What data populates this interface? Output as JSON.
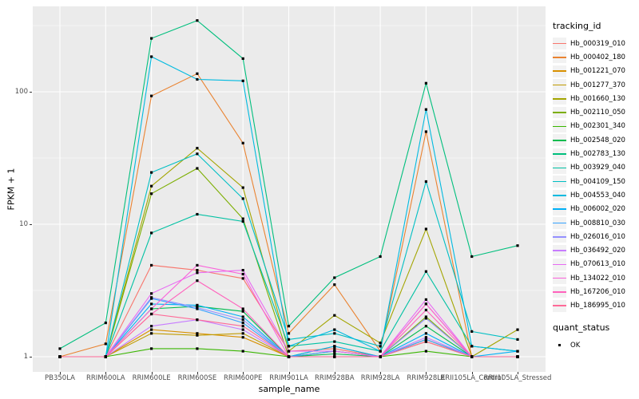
{
  "chart_data": {
    "type": "line",
    "title": "",
    "xlabel": "sample_name",
    "ylabel": "FPKM + 1",
    "y_scale": "log10",
    "ylim": [
      1,
      400
    ],
    "grid": "on",
    "legend_position": "right",
    "y_ticks": {
      "labels": [
        "1",
        "10",
        "100"
      ],
      "values": [
        1,
        10,
        100
      ]
    },
    "y_minor": [
      3.162,
      31.62,
      316.2
    ],
    "categories": [
      "PB350LA",
      "RRIM600LA",
      "RRIM600LE",
      "RRIM600SE",
      "RRIM600PE",
      "RRIM901LA",
      "RRIM928BA",
      "RRIM928LA",
      "RRIM928LE",
      "RRII105LA_Control",
      "RRII105LA_Stressed"
    ],
    "point_marker": {
      "shape": "square",
      "color": "#000000"
    },
    "series": [
      {
        "name": "Hb_000319_010",
        "color": "#F8766D",
        "values": [
          1,
          1,
          4.9,
          4.5,
          3.9,
          1.1,
          1.15,
          1,
          2.5,
          1,
          1
        ]
      },
      {
        "name": "Hb_000402_180",
        "color": "#EA8331",
        "values": [
          1,
          1.25,
          93,
          137,
          41,
          1.5,
          3.5,
          1.1,
          50,
          1,
          1
        ]
      },
      {
        "name": "Hb_001221_070",
        "color": "#D89000",
        "values": [
          1,
          1,
          1.6,
          1.5,
          1.4,
          1,
          1.1,
          1,
          1.35,
          1,
          1
        ]
      },
      {
        "name": "Hb_001277_370",
        "color": "#C09B00",
        "values": [
          1,
          1,
          1.5,
          1.45,
          1.5,
          1,
          1,
          1,
          1.3,
          1,
          1
        ]
      },
      {
        "name": "Hb_001660_130",
        "color": "#A3A500",
        "values": [
          1,
          1,
          19.4,
          37.5,
          18.9,
          1.1,
          2.05,
          1.27,
          9.2,
          1,
          1.6
        ]
      },
      {
        "name": "Hb_002110_050",
        "color": "#7CAE00",
        "values": [
          1,
          1,
          17,
          26.4,
          11,
          1,
          1.2,
          1,
          2,
          1,
          1
        ]
      },
      {
        "name": "Hb_002301_340",
        "color": "#39B600",
        "values": [
          1,
          1,
          1.15,
          1.15,
          1.1,
          1,
          1,
          1,
          1.1,
          1,
          1
        ]
      },
      {
        "name": "Hb_002548_020",
        "color": "#00BB4E",
        "values": [
          1,
          1,
          2.3,
          2.4,
          2.2,
          1,
          1.05,
          1,
          1.7,
          1,
          1
        ]
      },
      {
        "name": "Hb_002783_130",
        "color": "#00BF7D",
        "values": [
          1.15,
          1.8,
          253,
          345,
          178,
          1.7,
          3.95,
          5.7,
          116,
          5.7,
          6.9
        ]
      },
      {
        "name": "Hb_003929_040",
        "color": "#00C1A3",
        "values": [
          1,
          1,
          8.6,
          11.9,
          10.5,
          1.2,
          1.3,
          1.1,
          4.4,
          1.2,
          1.1
        ]
      },
      {
        "name": "Hb_004109_150",
        "color": "#00BFC4",
        "values": [
          1,
          1,
          24.6,
          34,
          15.6,
          1.35,
          1.5,
          1.2,
          21,
          1.55,
          1.35
        ]
      },
      {
        "name": "Hb_004553_040",
        "color": "#00BAE0",
        "values": [
          1,
          1,
          184,
          124,
          121,
          1.2,
          1.6,
          1.1,
          73.5,
          1.2,
          1.1
        ]
      },
      {
        "name": "Hb_006002_020",
        "color": "#00B0F6",
        "values": [
          1,
          1,
          2.5,
          2.45,
          2,
          1,
          1.2,
          1,
          1.5,
          1,
          1.1
        ]
      },
      {
        "name": "Hb_008810_030",
        "color": "#35A2FF",
        "values": [
          1,
          1,
          2.75,
          2.3,
          1.8,
          1,
          1.1,
          1,
          1.35,
          1,
          1
        ]
      },
      {
        "name": "Hb_026016_010",
        "color": "#9590FF",
        "values": [
          1,
          1,
          2.8,
          2.35,
          1.9,
          1,
          1,
          1,
          1.95,
          1,
          1
        ]
      },
      {
        "name": "Hb_036492_020",
        "color": "#C77CFF",
        "values": [
          1,
          1,
          1.7,
          1.9,
          1.6,
          1,
          1,
          1,
          1.4,
          1,
          1
        ]
      },
      {
        "name": "Hb_070613_010",
        "color": "#E76BF3",
        "values": [
          1,
          1,
          3.0,
          4.3,
          4.5,
          1.1,
          1.1,
          1,
          2.7,
          1,
          1
        ]
      },
      {
        "name": "Hb_134022_010",
        "color": "#FA62DB",
        "values": [
          1,
          1,
          2.3,
          4.9,
          4.2,
          1,
          1,
          1,
          2.5,
          1,
          1
        ]
      },
      {
        "name": "Hb_167206_010",
        "color": "#FF62BC",
        "values": [
          1,
          1,
          2.1,
          3.75,
          2.3,
          1,
          1,
          1,
          2.25,
          1,
          1
        ]
      },
      {
        "name": "Hb_186995_010",
        "color": "#FF6A98",
        "values": [
          1,
          1,
          2.1,
          1.9,
          1.7,
          1,
          1,
          1,
          1.3,
          1,
          1
        ]
      }
    ]
  },
  "legend": {
    "title": "tracking_id"
  },
  "legend2": {
    "title": "quant_status",
    "items": [
      {
        "label": "OK"
      }
    ]
  },
  "colors": {
    "panel_bg": "#EBEBEB",
    "grid": "#FFFFFF",
    "tick_text": "#4D4D4D",
    "tick_mark": "#333333",
    "legend_key_bg": "#F2F2F2",
    "point": "#000000"
  }
}
